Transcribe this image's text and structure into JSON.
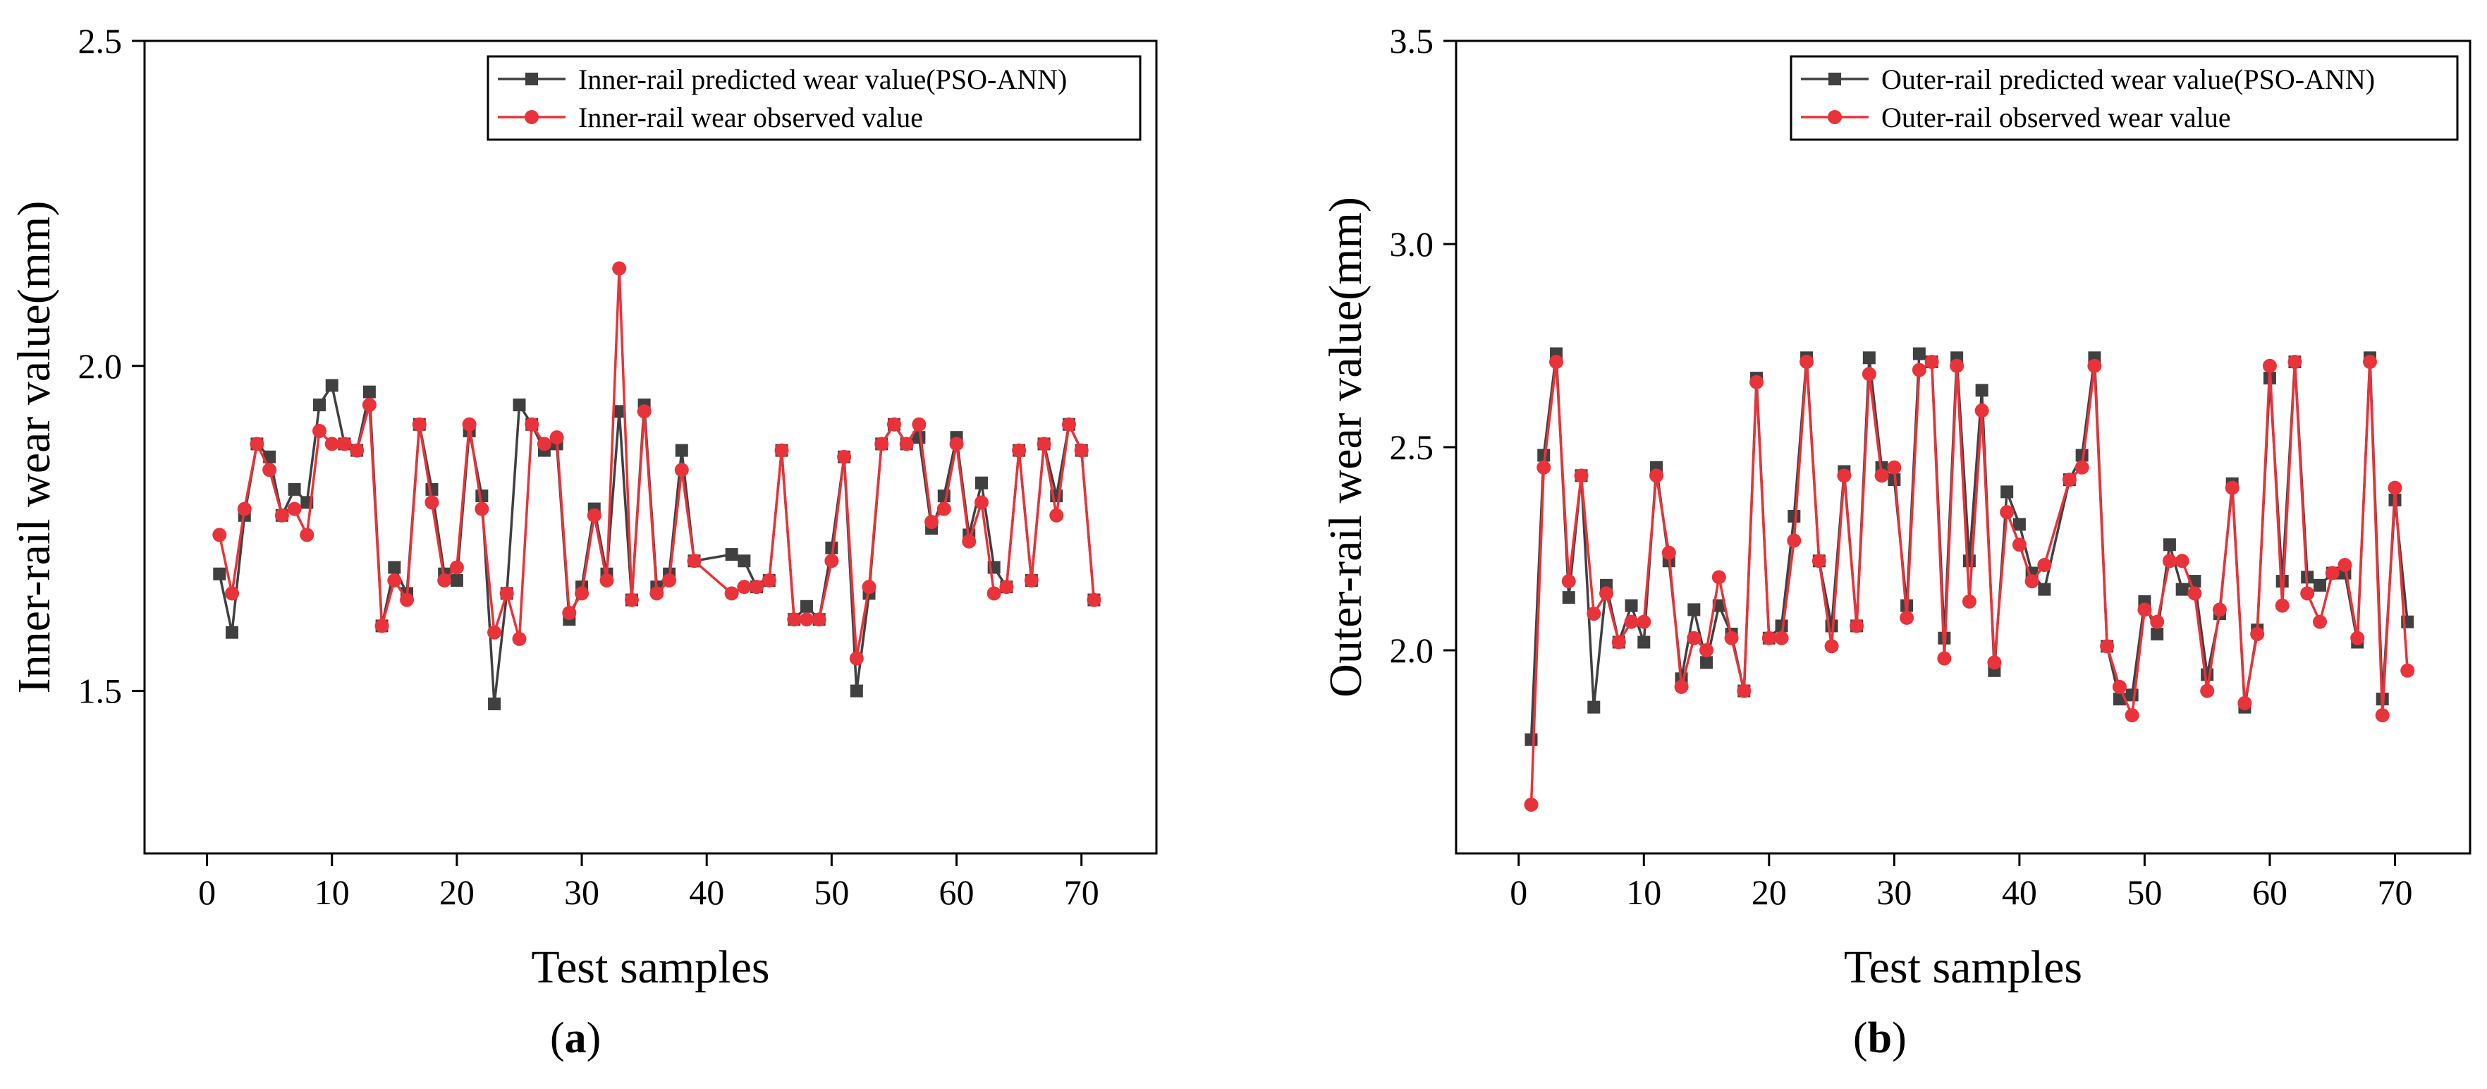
{
  "colors": {
    "predicted": "#404040",
    "observed": "#e8333a"
  },
  "panels": [
    {
      "label_open": "(",
      "label_letter": "a",
      "label_close": ")",
      "legend": {
        "predicted": "Inner-rail predicted wear value(PSO-ANN)",
        "observed": "Inner-rail wear observed value"
      }
    },
    {
      "label_open": "(",
      "label_letter": "b",
      "label_close": ")",
      "legend": {
        "predicted": "Outer-rail predicted wear value(PSO-ANN)",
        "observed": "Outer-rail observed wear value"
      }
    }
  ],
  "chart_data": [
    {
      "type": "line",
      "xlabel": "Test samples",
      "ylabel": "Inner-rail wear value(mm)",
      "xlim": [
        -5,
        76
      ],
      "ylim": [
        1.25,
        2.5
      ],
      "xticks": [
        0,
        10,
        20,
        30,
        40,
        50,
        60,
        70
      ],
      "yticks": [
        1.5,
        2.0,
        2.5
      ],
      "ytick_labels": [
        "1.5",
        "2.0",
        "2.5"
      ],
      "legend_position": "top-right",
      "series": [
        {
          "name": "Inner-rail predicted wear value(PSO-ANN)",
          "marker": "square",
          "x": [
            1,
            2,
            3,
            4,
            5,
            6,
            7,
            8,
            9,
            10,
            11,
            12,
            13,
            14,
            15,
            16,
            17,
            18,
            19,
            20,
            21,
            22,
            23,
            24,
            25,
            26,
            27,
            28,
            29,
            30,
            31,
            32,
            33,
            34,
            35,
            36,
            37,
            38,
            39,
            42,
            43,
            44,
            45,
            46,
            47,
            48,
            49,
            50,
            51,
            52,
            53,
            54,
            55,
            56,
            57,
            58,
            59,
            60,
            61,
            62,
            63,
            64,
            65,
            66,
            67,
            68,
            69,
            70,
            71
          ],
          "values": [
            1.68,
            1.59,
            1.77,
            1.88,
            1.86,
            1.77,
            1.81,
            1.79,
            1.94,
            1.97,
            1.88,
            1.87,
            1.96,
            1.6,
            1.69,
            1.65,
            1.91,
            1.81,
            1.68,
            1.67,
            1.9,
            1.8,
            1.48,
            1.65,
            1.94,
            1.91,
            1.87,
            1.88,
            1.61,
            1.66,
            1.78,
            1.68,
            1.93,
            1.64,
            1.94,
            1.66,
            1.68,
            1.87,
            1.7,
            1.71,
            1.7,
            1.66,
            1.67,
            1.87,
            1.61,
            1.63,
            1.61,
            1.72,
            1.86,
            1.5,
            1.65,
            1.88,
            1.91,
            1.88,
            1.89,
            1.75,
            1.8,
            1.89,
            1.74,
            1.82,
            1.69,
            1.66,
            1.87,
            1.67,
            1.88,
            1.8,
            1.91,
            1.87,
            1.64
          ]
        },
        {
          "name": "Inner-rail wear observed value",
          "marker": "circle",
          "x": [
            1,
            2,
            3,
            4,
            5,
            6,
            7,
            8,
            9,
            10,
            11,
            12,
            13,
            14,
            15,
            16,
            17,
            18,
            19,
            20,
            21,
            22,
            23,
            24,
            25,
            26,
            27,
            28,
            29,
            30,
            31,
            32,
            33,
            34,
            35,
            36,
            37,
            38,
            39,
            42,
            43,
            44,
            45,
            46,
            47,
            48,
            49,
            50,
            51,
            52,
            53,
            54,
            55,
            56,
            57,
            58,
            59,
            60,
            61,
            62,
            63,
            64,
            65,
            66,
            67,
            68,
            69,
            70,
            71
          ],
          "values": [
            1.74,
            1.65,
            1.78,
            1.88,
            1.84,
            1.77,
            1.78,
            1.74,
            1.9,
            1.88,
            1.88,
            1.87,
            1.94,
            1.6,
            1.67,
            1.64,
            1.91,
            1.79,
            1.67,
            1.69,
            1.91,
            1.78,
            1.59,
            1.65,
            1.58,
            1.91,
            1.88,
            1.89,
            1.62,
            1.65,
            1.77,
            1.67,
            2.15,
            1.64,
            1.93,
            1.65,
            1.67,
            1.84,
            1.7,
            1.65,
            1.66,
            1.66,
            1.67,
            1.87,
            1.61,
            1.61,
            1.61,
            1.7,
            1.86,
            1.55,
            1.66,
            1.88,
            1.91,
            1.88,
            1.91,
            1.76,
            1.78,
            1.88,
            1.73,
            1.79,
            1.65,
            1.66,
            1.87,
            1.67,
            1.88,
            1.77,
            1.91,
            1.87,
            1.64
          ]
        }
      ]
    },
    {
      "type": "line",
      "xlabel": "Test samples",
      "ylabel": "Outer-rail wear value(mm)",
      "xlim": [
        -5,
        76
      ],
      "ylim": [
        1.5,
        3.5
      ],
      "xticks": [
        0,
        10,
        20,
        30,
        40,
        50,
        60,
        70
      ],
      "yticks": [
        2.0,
        2.5,
        3.0,
        3.5
      ],
      "ytick_labels": [
        "2.0",
        "2.5",
        "3.0",
        "3.5"
      ],
      "legend_position": "top-right",
      "series": [
        {
          "name": "Outer-rail predicted wear value(PSO-ANN)",
          "marker": "square",
          "x": [
            1,
            2,
            3,
            4,
            5,
            6,
            7,
            8,
            9,
            10,
            11,
            12,
            13,
            14,
            15,
            16,
            17,
            18,
            19,
            20,
            21,
            22,
            23,
            24,
            25,
            26,
            27,
            28,
            29,
            30,
            31,
            32,
            33,
            34,
            35,
            36,
            37,
            38,
            39,
            40,
            41,
            42,
            44,
            45,
            46,
            47,
            48,
            49,
            50,
            51,
            52,
            53,
            54,
            55,
            56,
            57,
            58,
            59,
            60,
            61,
            62,
            63,
            64,
            65,
            66,
            67,
            68,
            69,
            70,
            71
          ],
          "values": [
            1.78,
            2.48,
            2.73,
            2.13,
            2.43,
            1.86,
            2.16,
            2.02,
            2.11,
            2.02,
            2.45,
            2.22,
            1.93,
            2.1,
            1.97,
            2.11,
            2.04,
            1.9,
            2.67,
            2.03,
            2.06,
            2.33,
            2.72,
            2.22,
            2.06,
            2.44,
            2.06,
            2.72,
            2.45,
            2.42,
            2.11,
            2.73,
            2.71,
            2.03,
            2.72,
            2.22,
            2.64,
            1.95,
            2.39,
            2.31,
            2.19,
            2.15,
            2.42,
            2.48,
            2.72,
            2.01,
            1.88,
            1.89,
            2.12,
            2.04,
            2.26,
            2.15,
            2.17,
            1.94,
            2.09,
            2.41,
            1.86,
            2.05,
            2.67,
            2.17,
            2.71,
            2.18,
            2.16,
            2.19,
            2.19,
            2.02,
            2.72,
            1.88,
            2.37,
            2.07
          ]
        },
        {
          "name": "Outer-rail observed wear value",
          "marker": "circle",
          "x": [
            1,
            2,
            3,
            4,
            5,
            6,
            7,
            8,
            9,
            10,
            11,
            12,
            13,
            14,
            15,
            16,
            17,
            18,
            19,
            20,
            21,
            22,
            23,
            24,
            25,
            26,
            27,
            28,
            29,
            30,
            31,
            32,
            33,
            34,
            35,
            36,
            37,
            38,
            39,
            40,
            41,
            42,
            44,
            45,
            46,
            47,
            48,
            49,
            50,
            51,
            52,
            53,
            54,
            55,
            56,
            57,
            58,
            59,
            60,
            61,
            62,
            63,
            64,
            65,
            66,
            67,
            68,
            69,
            70,
            71
          ],
          "values": [
            1.62,
            2.45,
            2.71,
            2.17,
            2.43,
            2.09,
            2.14,
            2.02,
            2.07,
            2.07,
            2.43,
            2.24,
            1.91,
            2.03,
            2.0,
            2.18,
            2.03,
            1.9,
            2.66,
            2.03,
            2.03,
            2.27,
            2.71,
            2.22,
            2.01,
            2.43,
            2.06,
            2.68,
            2.43,
            2.45,
            2.08,
            2.69,
            2.71,
            1.98,
            2.7,
            2.12,
            2.59,
            1.97,
            2.34,
            2.26,
            2.17,
            2.21,
            2.42,
            2.45,
            2.7,
            2.01,
            1.91,
            1.84,
            2.1,
            2.07,
            2.22,
            2.22,
            2.14,
            1.9,
            2.1,
            2.4,
            1.87,
            2.04,
            2.7,
            2.11,
            2.71,
            2.14,
            2.07,
            2.19,
            2.21,
            2.03,
            2.71,
            1.84,
            2.4,
            1.95
          ]
        }
      ]
    }
  ]
}
